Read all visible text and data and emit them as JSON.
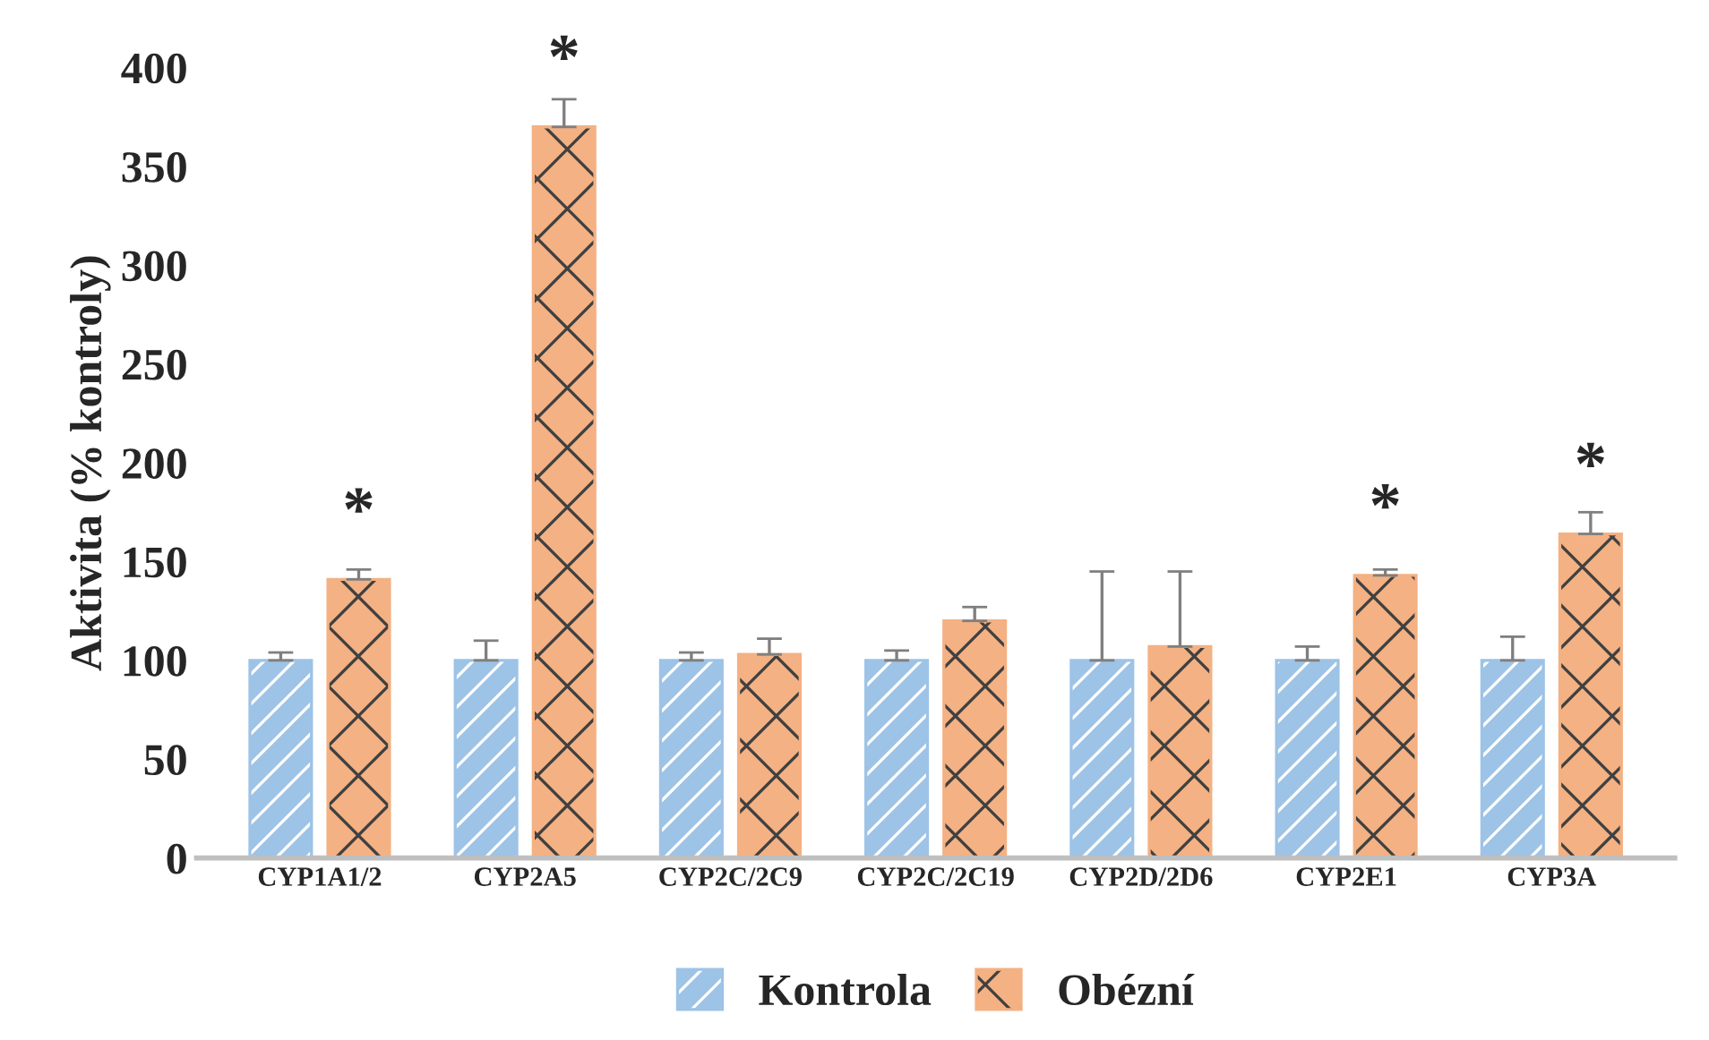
{
  "chart_data": {
    "type": "bar",
    "ylabel": "Aktivita (% kontroly)",
    "categories": [
      "CYP1A1/2",
      "CYP2A5",
      "CYP2C/2C9",
      "CYP2C/2C19",
      "CYP2D/2D6",
      "CYP2E1",
      "CYP3A"
    ],
    "series": [
      {
        "name": "Kontrola",
        "color": "#9dc3e6",
        "values": [
          100,
          100,
          100,
          100,
          100,
          100,
          100
        ],
        "errors": [
          4,
          10,
          4,
          5,
          45,
          7,
          12
        ]
      },
      {
        "name": "Obézní",
        "color": "#f4b183",
        "values": [
          141,
          370,
          103,
          120,
          107,
          143,
          164
        ],
        "errors": [
          5,
          14,
          8,
          7,
          38,
          3,
          11
        ]
      }
    ],
    "ylim": [
      0,
      400
    ],
    "yticks": [
      0,
      50,
      100,
      150,
      200,
      250,
      300,
      350,
      400
    ],
    "grid": false,
    "legend": "bottom",
    "annotations": [
      {
        "text": "*",
        "x": "CYP1A1/2",
        "y": 141
      },
      {
        "text": "*",
        "x": "CYP2A5",
        "y": 370
      },
      {
        "text": "*",
        "x": "CYP2E1",
        "y": 143
      },
      {
        "text": "*",
        "x": "CYP3A",
        "y": 164
      }
    ]
  }
}
